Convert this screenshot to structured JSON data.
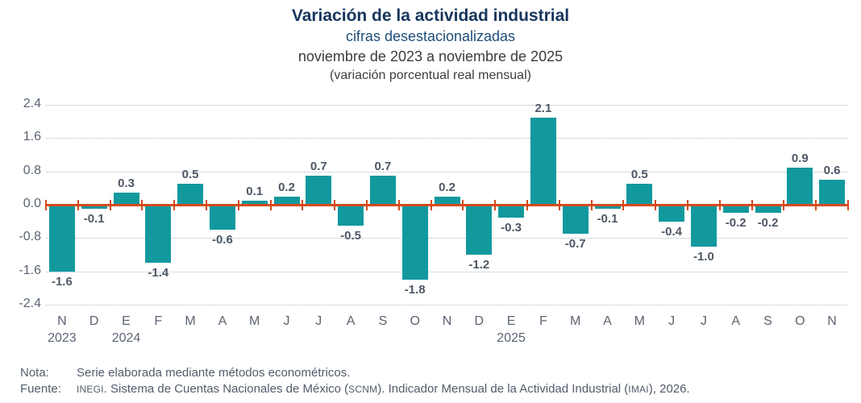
{
  "header": {
    "title": "Variación de la actividad industrial",
    "subtitle1": "cifras desestacionalizadas",
    "subtitle2": "noviembre de 2023 a noviembre de 2025",
    "subtitle3": "(variación porcentual real mensual)"
  },
  "chart_data": {
    "type": "bar",
    "title": "Variación de la actividad industrial",
    "subtitle": "cifras desestacionalizadas, noviembre de 2023 a noviembre de 2025, variación porcentual real mensual",
    "categories": [
      "N",
      "D",
      "E",
      "F",
      "M",
      "A",
      "M",
      "J",
      "J",
      "A",
      "S",
      "O",
      "N",
      "D",
      "E",
      "F",
      "M",
      "A",
      "M",
      "J",
      "J",
      "A",
      "S",
      "O",
      "N"
    ],
    "values": [
      -1.6,
      -0.1,
      0.3,
      -1.4,
      0.5,
      -0.6,
      0.1,
      0.2,
      0.7,
      -0.5,
      0.7,
      -1.8,
      0.2,
      -1.2,
      -0.3,
      2.1,
      -0.7,
      -0.1,
      0.5,
      -0.4,
      -1.0,
      -0.2,
      -0.2,
      0.9,
      0.6
    ],
    "year_labels": [
      {
        "index": 0,
        "label": "2023"
      },
      {
        "index": 2,
        "label": "2024"
      },
      {
        "index": 14,
        "label": "2025"
      }
    ],
    "y_ticks": [
      "2.4",
      "1.6",
      "0.8",
      "0.0",
      "-0.8",
      "-1.6",
      "-2.4"
    ],
    "ylim": [
      -2.4,
      2.4
    ],
    "grid": "horizontal-dotted",
    "legend": "none",
    "bar_color": "#12999E",
    "zero_line_color": "#D54A1D",
    "value_label_color": "#4D5765",
    "axis_text_color": "#5A6472"
  },
  "footer": {
    "note_label": "Nota:",
    "note_text": "Serie elaborada mediante métodos econométricos.",
    "source_label": "Fuente:",
    "source_segments": [
      {
        "text": "INEGI",
        "acronym": true
      },
      {
        "text": ". Sistema de Cuentas Nacionales de México (",
        "acronym": false
      },
      {
        "text": "SCNM",
        "acronym": true
      },
      {
        "text": "). Indicador Mensual de la Actividad Industrial (",
        "acronym": false
      },
      {
        "text": "IMAI",
        "acronym": true
      },
      {
        "text": "), 2026.",
        "acronym": false
      }
    ]
  }
}
